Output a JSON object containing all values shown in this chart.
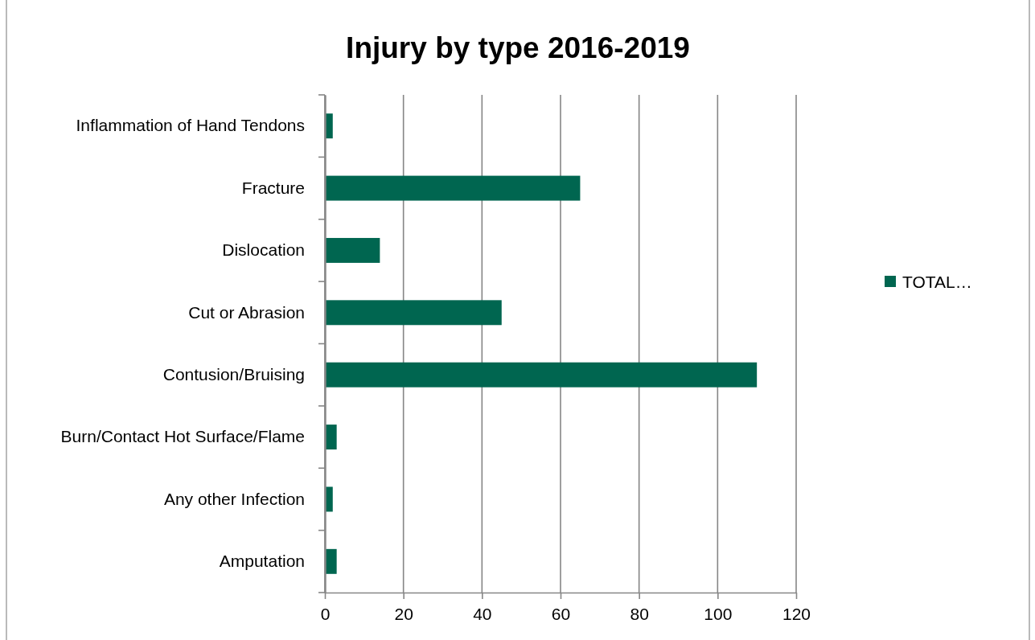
{
  "chart_data": {
    "type": "bar",
    "orientation": "horizontal",
    "title": "Injury by type 2016-2019",
    "categories": [
      "Inflammation of Hand Tendons",
      "Fracture",
      "Dislocation",
      "Cut or Abrasion",
      "Contusion/Bruising",
      "Burn/Contact Hot Surface/Flame",
      "Any other Infection",
      "Amputation"
    ],
    "series": [
      {
        "name": "TOTAL…",
        "color": "#006650",
        "values": [
          2,
          65,
          14,
          45,
          110,
          3,
          2,
          3
        ]
      }
    ],
    "xlim": [
      0,
      120
    ],
    "xticks": [
      0,
      20,
      40,
      60,
      80,
      100,
      120
    ],
    "grid": "x",
    "legend": "right"
  }
}
